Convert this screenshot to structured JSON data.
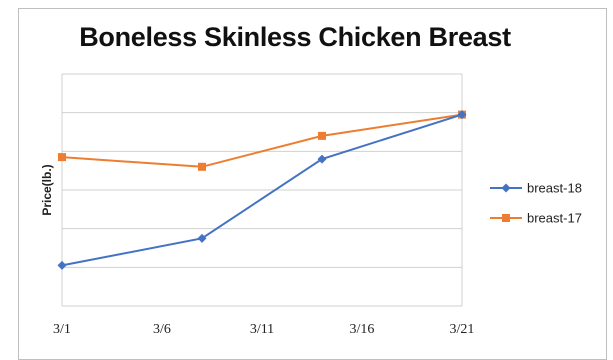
{
  "chart_data": {
    "type": "line",
    "title": "Boneless Skinless Chicken Breast",
    "xlabel": "",
    "ylabel": "Price(lb.)",
    "x_ticks": [
      "3/1",
      "3/6",
      "3/11",
      "3/16",
      "3/21"
    ],
    "xlim": [
      1,
      21
    ],
    "ylim": [
      0,
      6
    ],
    "grid": true,
    "legend_position": "right",
    "series": [
      {
        "name": "breast-18",
        "color": "#4472c4",
        "marker": "diamond",
        "x": [
          1,
          8,
          14,
          21
        ],
        "y": [
          1.05,
          1.75,
          3.8,
          4.95
        ]
      },
      {
        "name": "breast-17",
        "color": "#ed7d31",
        "marker": "square",
        "x": [
          1,
          8,
          14,
          21
        ],
        "y": [
          3.85,
          3.6,
          4.4,
          4.95
        ]
      }
    ]
  }
}
